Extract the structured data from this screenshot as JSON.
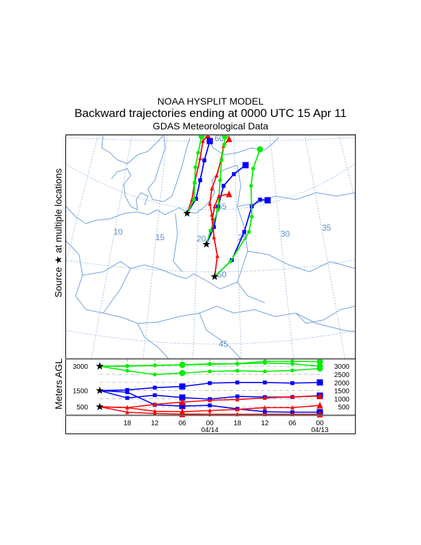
{
  "title": {
    "line1": "NOAA HYSPLIT MODEL",
    "line2": "Backward trajectories ending at 0000 UTC 15 Apr 11",
    "line3": "GDAS Meteorological Data"
  },
  "map": {
    "y_label": "Source ★ at multiple locations",
    "longitude_labels": [
      "10",
      "15",
      "20",
      "25",
      "30",
      "35"
    ],
    "latitude_labels": [
      "60",
      "55",
      "50",
      "45"
    ],
    "colors": {
      "coast": "#6f9fd8",
      "grid": "#8fb3de",
      "low": "#ff0000",
      "mid": "#0000ff",
      "high": "#00ee00"
    }
  },
  "vertical_panel": {
    "y_label": "Meters AGL",
    "left_ticks": [
      "3000",
      "1500",
      "500"
    ],
    "right_ticks": [
      "3000",
      "2500",
      "2000",
      "1500",
      "1000",
      "500"
    ],
    "time_labels": [
      "18",
      "12",
      "06",
      "00",
      "18",
      "12",
      "06",
      "00"
    ],
    "date_labels": [
      "04/14",
      "04/13"
    ],
    "chart_data": {
      "type": "line",
      "x_hours_back": [
        0,
        6,
        12,
        18,
        24,
        30,
        36,
        42,
        48
      ],
      "ylim": [
        0,
        3500
      ],
      "series": [
        {
          "name": "3000 m A",
          "color": "#00ee00",
          "marker": "circle",
          "values": [
            3000,
            3020,
            3060,
            3090,
            3150,
            3160,
            3300,
            3300,
            3280
          ]
        },
        {
          "name": "3000 m B",
          "color": "#00ee00",
          "marker": "circle",
          "values": [
            3000,
            2720,
            2490,
            2580,
            2680,
            2720,
            2680,
            2740,
            2860
          ]
        },
        {
          "name": "3000 m C",
          "color": "#00ee00",
          "marker": "circle",
          "values": [
            3000,
            3000,
            3050,
            3080,
            3120,
            3150,
            3200,
            3150,
            3000
          ]
        },
        {
          "name": "1500 m A",
          "color": "#0000ff",
          "marker": "square",
          "values": [
            1500,
            1540,
            1680,
            1750,
            1960,
            2000,
            2000,
            1960,
            2000
          ]
        },
        {
          "name": "1500 m B",
          "color": "#0000ff",
          "marker": "square",
          "values": [
            1500,
            1045,
            1215,
            1070,
            975,
            1140,
            1100,
            1100,
            1190
          ]
        },
        {
          "name": "1500 m C",
          "color": "#0000ff",
          "marker": "square",
          "values": [
            1500,
            1400,
            620,
            550,
            590,
            370,
            200,
            170,
            170
          ]
        },
        {
          "name": "500 m A",
          "color": "#ff0000",
          "marker": "triangle",
          "values": [
            500,
            450,
            650,
            790,
            900,
            950,
            1045,
            1115,
            1160
          ]
        },
        {
          "name": "500 m B",
          "color": "#ff0000",
          "marker": "triangle",
          "values": [
            500,
            450,
            225,
            200,
            270,
            340,
            450,
            450,
            590
          ]
        },
        {
          "name": "500 m C",
          "color": "#ff0000",
          "marker": "triangle",
          "values": [
            500,
            170,
            85,
            55,
            40,
            40,
            40,
            40,
            40
          ]
        }
      ]
    }
  }
}
